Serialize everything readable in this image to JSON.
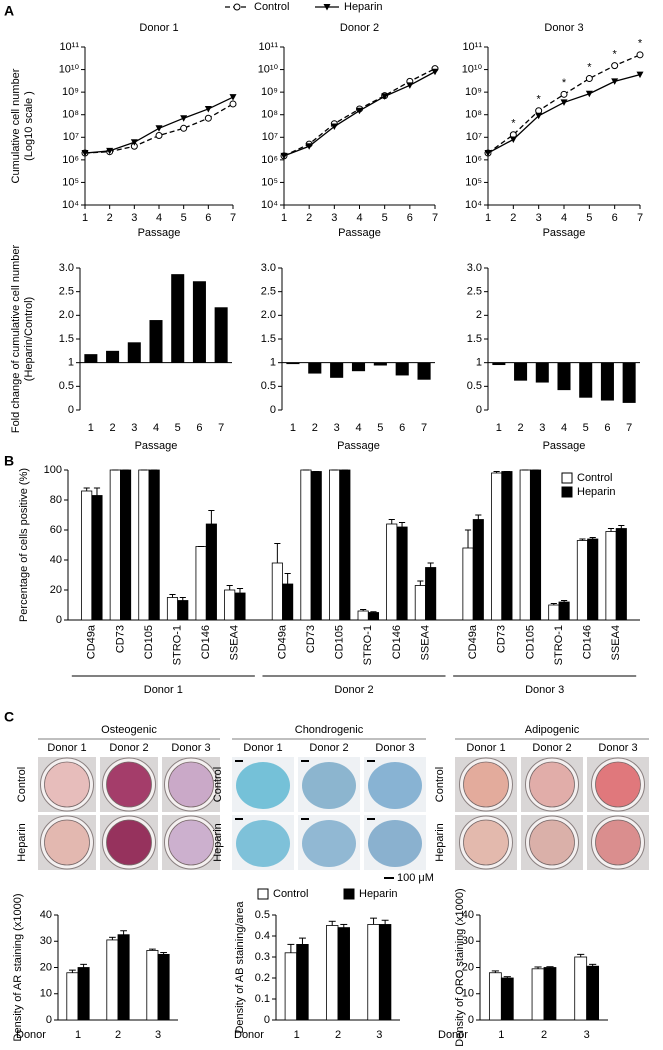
{
  "panel_labels": [
    "A",
    "B",
    "C"
  ],
  "chart_data": [
    {
      "type": "line",
      "title": "Donor 1",
      "ylabel": [
        "Cumulative cell number",
        "(Log10 scale )"
      ],
      "xlabel": "Passage",
      "log_y": true,
      "legend": "top",
      "x": [
        1,
        2,
        3,
        4,
        5,
        6,
        7
      ],
      "xlim": [
        1,
        7
      ],
      "xticks": [
        1,
        2,
        3,
        4,
        5,
        6,
        7
      ],
      "ylim": [
        10000,
        100000000000
      ],
      "yticks": [
        {
          "value": 10000,
          "label": "10⁴"
        },
        {
          "value": 100000,
          "label": "10⁵"
        },
        {
          "value": 1000000,
          "label": "10⁶"
        },
        {
          "value": 10000000,
          "label": "10⁷"
        },
        {
          "value": 100000000,
          "label": "10⁸"
        },
        {
          "value": 1000000000,
          "label": "10⁹"
        },
        {
          "value": 10000000000,
          "label": "10¹⁰"
        },
        {
          "value": 100000000000,
          "label": "10¹¹"
        }
      ],
      "series": [
        {
          "name": "Control",
          "color": "#000000",
          "marker": "circle",
          "dashed": true,
          "values": [
            2000000,
            2300000,
            4000000,
            12000000,
            25000000,
            70000000,
            300000000
          ]
        },
        {
          "name": "Heparin",
          "color": "#000000",
          "marker": "triangle",
          "dashed": false,
          "values": [
            2000000,
            2500000,
            6000000,
            25000000,
            70000000,
            180000000,
            600000000
          ]
        }
      ]
    },
    {
      "type": "line",
      "title": "Donor 2",
      "xlabel": "Passage",
      "log_y": true,
      "x": [
        1,
        2,
        3,
        4,
        5,
        6,
        7
      ],
      "xlim": [
        1,
        7
      ],
      "xticks": [
        1,
        2,
        3,
        4,
        5,
        6,
        7
      ],
      "ylim": [
        10000,
        100000000000
      ],
      "yticks": [
        {
          "value": 10000,
          "label": "10⁴"
        },
        {
          "value": 100000,
          "label": "10⁵"
        },
        {
          "value": 1000000,
          "label": "10⁶"
        },
        {
          "value": 10000000,
          "label": "10⁷"
        },
        {
          "value": 100000000,
          "label": "10⁸"
        },
        {
          "value": 1000000000,
          "label": "10⁹"
        },
        {
          "value": 10000000000,
          "label": "10¹⁰"
        },
        {
          "value": 100000000000,
          "label": "10¹¹"
        }
      ],
      "series": [
        {
          "color": "#000000",
          "marker": "circle",
          "dashed": true,
          "values": [
            1500000,
            5000000,
            40000000,
            180000000,
            700000000,
            3000000000,
            11000000000
          ]
        },
        {
          "color": "#000000",
          "marker": "triangle",
          "dashed": false,
          "values": [
            1500000,
            4000000,
            30000000,
            150000000,
            650000000,
            2000000000,
            8000000000
          ]
        }
      ]
    },
    {
      "type": "line",
      "title": "Donor 3",
      "xlabel": "Passage",
      "log_y": true,
      "x": [
        1,
        2,
        3,
        4,
        5,
        6,
        7
      ],
      "xlim": [
        1,
        7
      ],
      "xticks": [
        1,
        2,
        3,
        4,
        5,
        6,
        7
      ],
      "ylim": [
        10000,
        100000000000
      ],
      "yticks": [
        {
          "value": 10000,
          "label": "10⁴"
        },
        {
          "value": 100000,
          "label": "10⁵"
        },
        {
          "value": 1000000,
          "label": "10⁶"
        },
        {
          "value": 10000000,
          "label": "10⁷"
        },
        {
          "value": 100000000,
          "label": "10⁸"
        },
        {
          "value": 1000000000,
          "label": "10⁹"
        },
        {
          "value": 10000000000,
          "label": "10¹⁰"
        },
        {
          "value": 100000000000,
          "label": "10¹¹"
        }
      ],
      "series": [
        {
          "color": "#000000",
          "marker": "circle",
          "dashed": true,
          "values": [
            2000000,
            13000000,
            150000000,
            800000000,
            4000000000,
            15000000000,
            45000000000
          ]
        },
        {
          "color": "#000000",
          "marker": "triangle",
          "dashed": false,
          "values": [
            2000000,
            8000000,
            90000000,
            350000000,
            850000000,
            3000000000,
            6000000000
          ]
        }
      ],
      "annotations": [
        {
          "x": 2,
          "text": "*"
        },
        {
          "x": 3,
          "text": "*"
        },
        {
          "x": 4,
          "text": "*"
        },
        {
          "x": 5,
          "text": "*"
        },
        {
          "x": 6,
          "text": "*"
        },
        {
          "x": 7,
          "text": "*"
        }
      ]
    },
    {
      "type": "bar",
      "ylabel": [
        "Fold change of cumulative cell number",
        "(Heparin/Control)"
      ],
      "xlabel": "Passage",
      "baseline": 1,
      "color": "#000000",
      "categories": [
        "1",
        "2",
        "3",
        "4",
        "5",
        "6",
        "7"
      ],
      "values": [
        1.18,
        1.25,
        1.43,
        1.9,
        2.87,
        2.72,
        2.17
      ],
      "ylim": [
        0,
        3
      ],
      "yticks": [
        0,
        0.5,
        1,
        1.5,
        {
          "value": 2,
          "label": "2.0"
        },
        2.5,
        {
          "value": 3,
          "label": "3.0"
        }
      ]
    },
    {
      "type": "bar",
      "xlabel": "Passage",
      "baseline": 1,
      "color": "#000000",
      "categories": [
        "1",
        "2",
        "3",
        "4",
        "5",
        "6",
        "7"
      ],
      "values": [
        0.97,
        0.77,
        0.68,
        0.82,
        0.94,
        0.73,
        0.64
      ],
      "ylim": [
        0,
        3
      ],
      "yticks": [
        0,
        0.5,
        1,
        1.5,
        {
          "value": 2,
          "label": "2.0"
        },
        2.5,
        {
          "value": 3,
          "label": "3.0"
        }
      ]
    },
    {
      "type": "bar",
      "xlabel": "Passage",
      "baseline": 1,
      "color": "#000000",
      "categories": [
        "1",
        "2",
        "3",
        "4",
        "5",
        "6",
        "7"
      ],
      "values": [
        0.95,
        0.62,
        0.58,
        0.42,
        0.26,
        0.2,
        0.15
      ],
      "ylim": [
        0,
        3
      ],
      "yticks": [
        0,
        0.5,
        1,
        1.5,
        2,
        2.5,
        {
          "value": 3,
          "label": "3.0"
        }
      ]
    },
    {
      "type": "bar",
      "ylabel": [
        "Percentage of cells positive (%)"
      ],
      "legend": "right",
      "categories": [
        "CD49a",
        "CD73",
        "CD105",
        "STRO-1",
        "CD146",
        "SSEA4",
        "CD49a",
        "CD73",
        "CD105",
        "STRO-1",
        "CD146",
        "SSEA4",
        "CD49a",
        "CD73",
        "CD105",
        "STRO-1",
        "CD146",
        "SSEA4"
      ],
      "groups": [
        "Donor 1",
        "Donor 2",
        "Donor 3"
      ],
      "ylim": [
        0,
        100
      ],
      "yticks": [
        0,
        20,
        40,
        60,
        80,
        100
      ],
      "series": [
        {
          "name": "Control",
          "color": "#ffffff",
          "values": [
            86,
            100,
            100,
            15,
            49,
            20,
            38,
            100,
            100,
            6,
            64,
            23,
            48,
            98,
            100,
            10,
            53,
            59
          ],
          "errors": [
            2,
            0,
            0,
            2,
            0,
            3,
            13,
            0,
            0,
            1,
            3,
            3,
            12,
            1,
            0,
            1,
            1,
            2
          ]
        },
        {
          "name": "Heparin",
          "color": "#000000",
          "values": [
            83,
            100,
            100,
            13,
            64,
            18,
            24,
            99,
            100,
            5,
            62,
            35,
            67,
            99,
            100,
            12,
            54,
            61
          ],
          "errors": [
            5,
            0,
            0,
            2,
            9,
            3,
            7,
            0,
            0,
            0.5,
            3,
            3,
            3,
            0,
            0,
            1,
            1,
            2
          ]
        }
      ]
    },
    {
      "type": "bar",
      "ylabel": [
        "Density of AR staining (x1000)"
      ],
      "xlabel": "Donor",
      "categories": [
        "1",
        "2",
        "3"
      ],
      "ylim": [
        0,
        40
      ],
      "yticks": [
        0,
        10,
        20,
        30,
        40
      ],
      "series": [
        {
          "color": "#ffffff",
          "values": [
            18,
            30.5,
            26.5
          ],
          "errors": [
            1,
            1,
            0.5
          ]
        },
        {
          "color": "#000000",
          "values": [
            20,
            32.5,
            25
          ],
          "errors": [
            1.2,
            1.5,
            0.7
          ]
        }
      ]
    },
    {
      "type": "bar",
      "ylabel": [
        "Density of AB staining/area"
      ],
      "xlabel": "Donor",
      "legend": "top",
      "categories": [
        "1",
        "2",
        "3"
      ],
      "ylim": [
        0,
        0.5
      ],
      "yticks": [
        0,
        0.1,
        0.2,
        0.3,
        0.4,
        0.5
      ],
      "series": [
        {
          "name": "Control",
          "color": "#ffffff",
          "values": [
            0.32,
            0.45,
            0.455
          ],
          "errors": [
            0.04,
            0.02,
            0.03
          ]
        },
        {
          "name": "Heparin",
          "color": "#000000",
          "values": [
            0.36,
            0.44,
            0.455
          ],
          "errors": [
            0.03,
            0.015,
            0.02
          ]
        }
      ]
    },
    {
      "type": "bar",
      "ylabel": [
        "Density of ORO staining (x1000)"
      ],
      "xlabel": "Donor",
      "categories": [
        "1",
        "2",
        "3"
      ],
      "ylim": [
        0,
        40
      ],
      "yticks": [
        0,
        10,
        20,
        30,
        40
      ],
      "series": [
        {
          "color": "#ffffff",
          "values": [
            18,
            19.5,
            24
          ],
          "errors": [
            0.7,
            0.7,
            1
          ]
        },
        {
          "color": "#000000",
          "values": [
            16,
            20,
            20.5
          ],
          "errors": [
            0.5,
            0.3,
            0.7
          ]
        }
      ]
    }
  ],
  "differentiation": {
    "columns": [
      {
        "title": "Osteogenic",
        "donors": [
          "Donor 1",
          "Donor 2",
          "Donor 3"
        ],
        "rows": [
          "Control",
          "Heparin"
        ]
      },
      {
        "title": "Chondrogenic",
        "donors": [
          "Donor 1",
          "Donor 2",
          "Donor 3"
        ],
        "rows": [
          "Control",
          "Heparin"
        ]
      },
      {
        "title": "Adipogenic",
        "donors": [
          "Donor 1",
          "Donor 2",
          "Donor 3"
        ],
        "rows": [
          "Control",
          "Heparin"
        ]
      }
    ],
    "scale_bar": "100 μM"
  }
}
